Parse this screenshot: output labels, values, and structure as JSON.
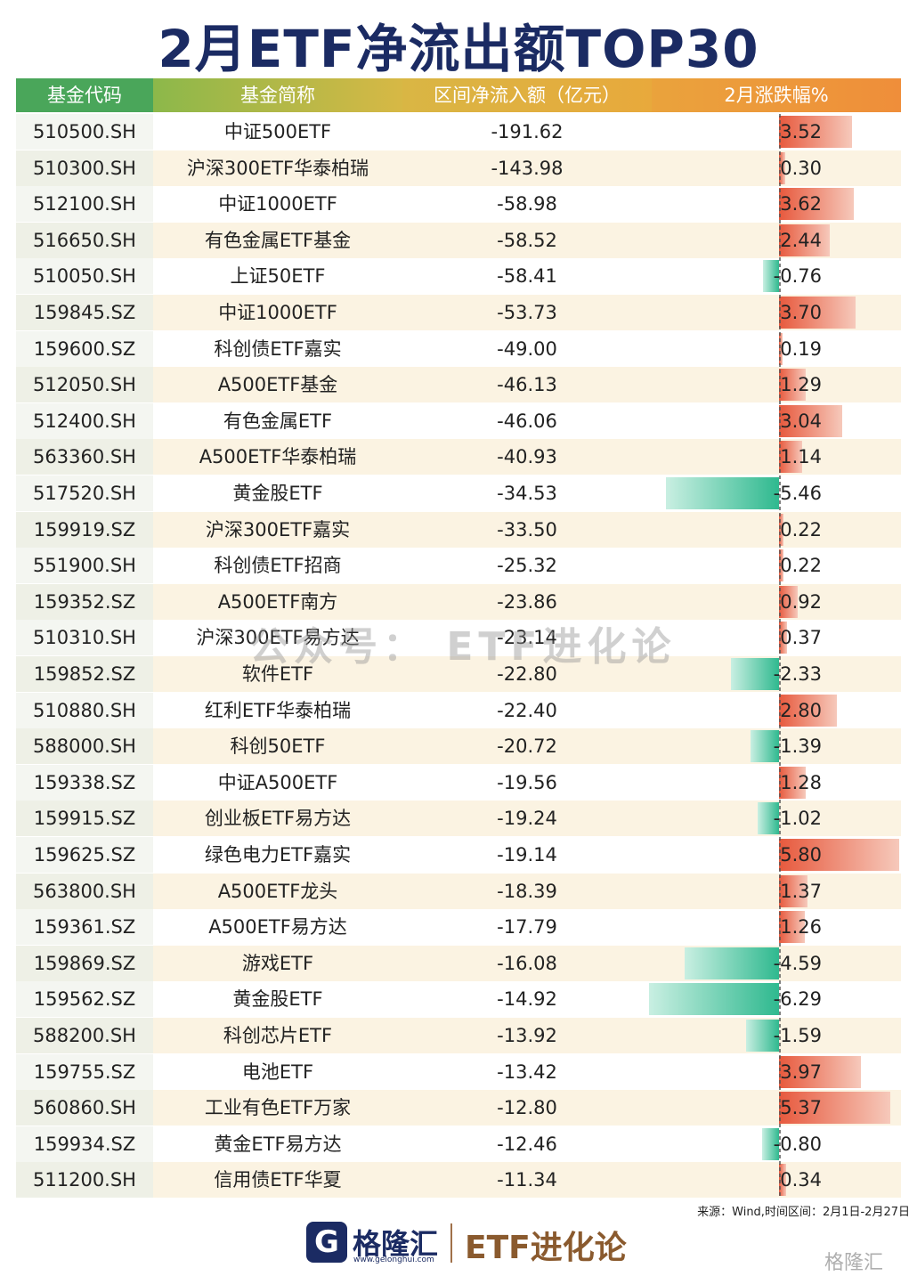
{
  "header": {
    "title": "2月ETF净流出额TOP30"
  },
  "table": {
    "columns": [
      "基金代码",
      "基金简称",
      "区间净流入额（亿元）",
      "2月涨跌幅%"
    ],
    "rows": [
      [
        "510500.SH",
        "中证500ETF",
        "-191.62",
        "3.52"
      ],
      [
        "510300.SH",
        "沪深300ETF华泰柏瑞",
        "-143.98",
        "0.30"
      ],
      [
        "512100.SH",
        "中证1000ETF",
        "-58.98",
        "3.62"
      ],
      [
        "516650.SH",
        "有色金属ETF基金",
        "-58.52",
        "2.44"
      ],
      [
        "510050.SH",
        "上证50ETF",
        "-58.41",
        "-0.76"
      ],
      [
        "159845.SZ",
        "中证1000ETF",
        "-53.73",
        "3.70"
      ],
      [
        "159600.SZ",
        "科创债ETF嘉实",
        "-49.00",
        "0.19"
      ],
      [
        "512050.SH",
        "A500ETF基金",
        "-46.13",
        "1.29"
      ],
      [
        "512400.SH",
        "有色金属ETF",
        "-46.06",
        "3.04"
      ],
      [
        "563360.SH",
        "A500ETF华泰柏瑞",
        "-40.93",
        "1.14"
      ],
      [
        "517520.SH",
        "黄金股ETF",
        "-34.53",
        "-5.46"
      ],
      [
        "159919.SZ",
        "沪深300ETF嘉实",
        "-33.50",
        "0.22"
      ],
      [
        "551900.SH",
        "科创债ETF招商",
        "-25.32",
        "0.22"
      ],
      [
        "159352.SZ",
        "A500ETF南方",
        "-23.86",
        "0.92"
      ],
      [
        "510310.SH",
        "沪深300ETF易方达",
        "-23.14",
        "0.37"
      ],
      [
        "159852.SZ",
        "软件ETF",
        "-22.80",
        "-2.33"
      ],
      [
        "510880.SH",
        "红利ETF华泰柏瑞",
        "-22.40",
        "2.80"
      ],
      [
        "588000.SH",
        "科创50ETF",
        "-20.72",
        "-1.39"
      ],
      [
        "159338.SZ",
        "中证A500ETF",
        "-19.56",
        "1.28"
      ],
      [
        "159915.SZ",
        "创业板ETF易方达",
        "-19.24",
        "-1.02"
      ],
      [
        "159625.SZ",
        "绿色电力ETF嘉实",
        "-19.14",
        "5.80"
      ],
      [
        "563800.SH",
        "A500ETF龙头",
        "-18.39",
        "1.37"
      ],
      [
        "159361.SZ",
        "A500ETF易方达",
        "-17.79",
        "1.26"
      ],
      [
        "159869.SZ",
        "游戏ETF",
        "-16.08",
        "-4.59"
      ],
      [
        "159562.SZ",
        "黄金股ETF",
        "-14.92",
        "-6.29"
      ],
      [
        "588200.SH",
        "科创芯片ETF",
        "-13.92",
        "-1.59"
      ],
      [
        "159755.SZ",
        "电池ETF",
        "-13.42",
        "3.97"
      ],
      [
        "560860.SH",
        "工业有色ETF万家",
        "-12.80",
        "5.37"
      ],
      [
        "159934.SZ",
        "黄金ETF易方达",
        "-12.46",
        "-0.80"
      ],
      [
        "511200.SH",
        "信用债ETF华夏",
        "-11.34",
        "0.34"
      ]
    ]
  },
  "source": "来源：Wind,时间区间：2月1日-2月27日",
  "watermark": "公众号： ETF进化论",
  "footer": {
    "brand": "格隆汇",
    "site": "www.gelonghui.com",
    "channel": "ETF进化论",
    "corner": "格隆汇"
  }
}
